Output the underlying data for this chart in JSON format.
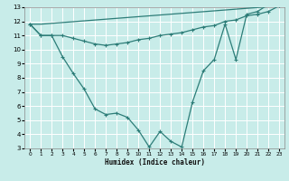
{
  "xlabel": "Humidex (Indice chaleur)",
  "background_color": "#c8ece9",
  "grid_color": "#ffffff",
  "line_color": "#2d7d78",
  "xlim": [
    -0.5,
    23.5
  ],
  "ylim": [
    3,
    13
  ],
  "yticks": [
    3,
    4,
    5,
    6,
    7,
    8,
    9,
    10,
    11,
    12,
    13
  ],
  "xticks": [
    0,
    1,
    2,
    3,
    4,
    5,
    6,
    7,
    8,
    9,
    10,
    11,
    12,
    13,
    14,
    15,
    16,
    17,
    18,
    19,
    20,
    21,
    22,
    23
  ],
  "line1_x": [
    0,
    1,
    2,
    3,
    4,
    5,
    6,
    7,
    8,
    9,
    10,
    11,
    12,
    13,
    14,
    15,
    16,
    17,
    18,
    19,
    20,
    21,
    22,
    23
  ],
  "line1_y": [
    11.8,
    11.0,
    11.0,
    9.5,
    8.3,
    7.2,
    5.8,
    5.4,
    5.5,
    5.2,
    4.3,
    3.1,
    4.2,
    3.5,
    3.1,
    6.3,
    8.5,
    9.3,
    11.8,
    9.3,
    12.5,
    12.7,
    13.2,
    13.1
  ],
  "line2_x": [
    0,
    1,
    23
  ],
  "line2_y": [
    11.8,
    11.8,
    13.1
  ],
  "line3_x": [
    0,
    1,
    2,
    3,
    4,
    5,
    6,
    7,
    8,
    9,
    10,
    11,
    12,
    13,
    14,
    15,
    16,
    17,
    18,
    19,
    20,
    21,
    22,
    23
  ],
  "line3_y": [
    11.8,
    11.0,
    11.0,
    11.0,
    10.8,
    10.6,
    10.4,
    10.3,
    10.4,
    10.5,
    10.7,
    10.8,
    11.0,
    11.1,
    11.2,
    11.4,
    11.6,
    11.7,
    12.0,
    12.1,
    12.4,
    12.5,
    12.7,
    13.1
  ]
}
